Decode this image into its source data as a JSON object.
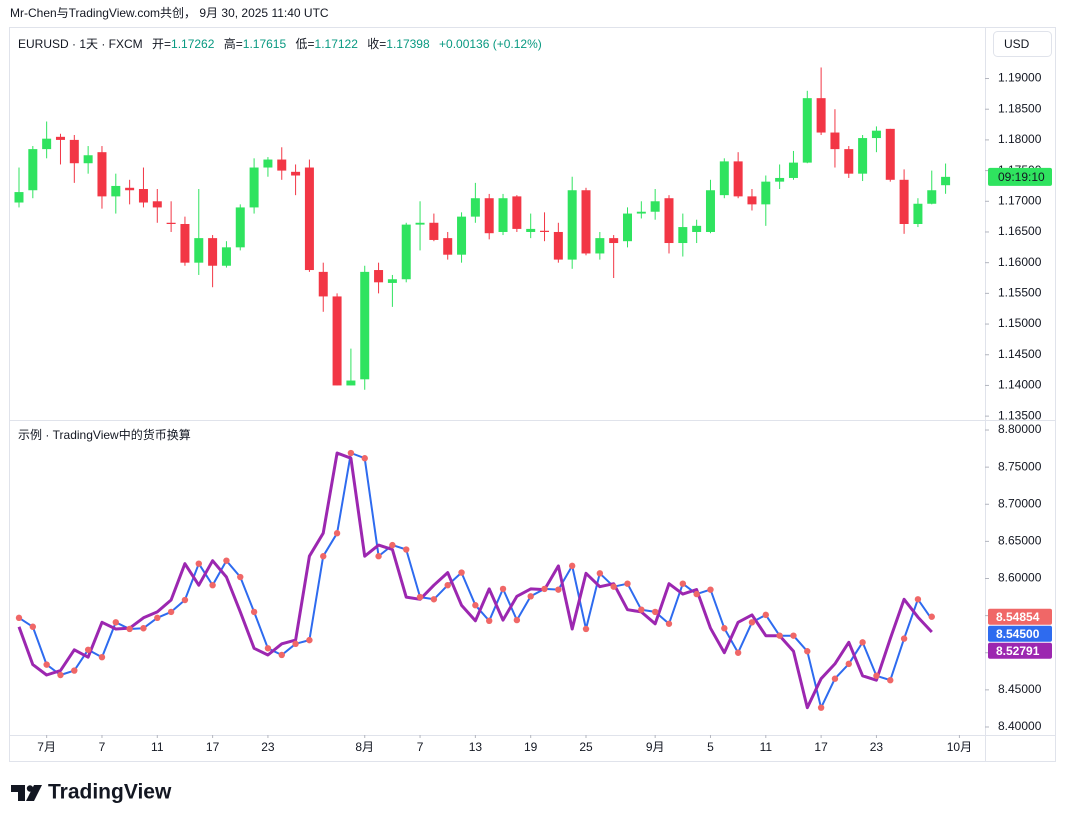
{
  "header": {
    "credit": "Mr-Chen与TradingView.com共创， 9月 30, 2025 11:40 UTC"
  },
  "currency_button": "USD",
  "logo": "TradingView",
  "chart_data": [
    {
      "type": "candlestick",
      "symbol": "EURUSD · 1天 · FXCM",
      "legend": {
        "open_label": "开=",
        "open": 1.17262,
        "high_label": "高=",
        "high": 1.17615,
        "low_label": "低=",
        "low": 1.17122,
        "close_label": "收=",
        "close": 1.17398,
        "change": "+0.00136 (+0.12%)"
      },
      "countdown": "09:19:10",
      "up_color": "#2fe35f",
      "down_color": "#f23645",
      "grid": false,
      "xlim": [
        -0.65,
        69.85
      ],
      "ylim": [
        1.13437,
        1.19823
      ],
      "yticks": [
        {
          "value": 1.135,
          "label": "1.13500"
        },
        {
          "value": 1.14,
          "label": "1.14000"
        },
        {
          "value": 1.145,
          "label": "1.14500"
        },
        {
          "value": 1.15,
          "label": "1.15000"
        },
        {
          "value": 1.155,
          "label": "1.15500"
        },
        {
          "value": 1.16,
          "label": "1.16000"
        },
        {
          "value": 1.165,
          "label": "1.16500"
        },
        {
          "value": 1.17,
          "label": "1.17000"
        },
        {
          "value": 1.175,
          "label": "1.17500"
        },
        {
          "value": 1.18,
          "label": "1.18000"
        },
        {
          "value": 1.185,
          "label": "1.18500"
        },
        {
          "value": 1.19,
          "label": "1.19000"
        }
      ],
      "open": [
        1.1698,
        1.1718,
        1.1785,
        1.1805,
        1.18,
        1.1762,
        1.178,
        1.1708,
        1.1722,
        1.172,
        1.17,
        1.1665,
        1.1663,
        1.16,
        1.164,
        1.1595,
        1.1625,
        1.169,
        1.1755,
        1.1768,
        1.1748,
        1.1755,
        1.1585,
        1.1545,
        1.14,
        1.141,
        1.1588,
        1.1567,
        1.1573,
        1.1662,
        1.1665,
        1.164,
        1.1613,
        1.1675,
        1.1705,
        1.165,
        1.1708,
        1.165,
        1.1652,
        1.165,
        1.1605,
        1.1718,
        1.1615,
        1.164,
        1.1635,
        1.168,
        1.1683,
        1.1705,
        1.1632,
        1.165,
        1.165,
        1.171,
        1.1765,
        1.1708,
        1.1695,
        1.1732,
        1.1738,
        1.1763,
        1.1868,
        1.1812,
        1.1785,
        1.1745,
        1.1803,
        1.1818,
        1.1735,
        1.1663,
        1.1696,
        1.17262
      ],
      "high": [
        1.1755,
        1.179,
        1.183,
        1.181,
        1.1808,
        1.179,
        1.179,
        1.1745,
        1.1735,
        1.1755,
        1.172,
        1.17,
        1.1675,
        1.172,
        1.1645,
        1.1635,
        1.1695,
        1.177,
        1.1772,
        1.1788,
        1.176,
        1.1768,
        1.16,
        1.155,
        1.146,
        1.1595,
        1.16,
        1.158,
        1.1665,
        1.17,
        1.168,
        1.165,
        1.1682,
        1.173,
        1.1712,
        1.1712,
        1.171,
        1.168,
        1.1682,
        1.1665,
        1.174,
        1.1722,
        1.165,
        1.1645,
        1.169,
        1.17,
        1.172,
        1.171,
        1.168,
        1.167,
        1.1735,
        1.177,
        1.178,
        1.172,
        1.1742,
        1.176,
        1.1782,
        1.188,
        1.1918,
        1.185,
        1.179,
        1.1808,
        1.1822,
        1.1818,
        1.1752,
        1.1705,
        1.175,
        1.17615
      ],
      "low": [
        1.169,
        1.1705,
        1.177,
        1.176,
        1.173,
        1.1745,
        1.1688,
        1.168,
        1.1695,
        1.169,
        1.1665,
        1.165,
        1.1595,
        1.158,
        1.156,
        1.1592,
        1.162,
        1.168,
        1.174,
        1.1735,
        1.171,
        1.1585,
        1.152,
        1.14,
        1.14,
        1.1393,
        1.155,
        1.1528,
        1.1568,
        1.162,
        1.1635,
        1.1605,
        1.16,
        1.1665,
        1.1638,
        1.1645,
        1.165,
        1.164,
        1.1635,
        1.16,
        1.159,
        1.1612,
        1.1605,
        1.1575,
        1.1625,
        1.1672,
        1.167,
        1.1615,
        1.161,
        1.1632,
        1.1648,
        1.1705,
        1.1705,
        1.1685,
        1.166,
        1.172,
        1.1735,
        1.1762,
        1.1808,
        1.1755,
        1.1738,
        1.1733,
        1.178,
        1.1732,
        1.1647,
        1.1658,
        1.1695,
        1.17122
      ],
      "close": [
        1.1715,
        1.1785,
        1.1802,
        1.18,
        1.1762,
        1.1775,
        1.1708,
        1.1725,
        1.1718,
        1.1698,
        1.169,
        1.1663,
        1.16,
        1.164,
        1.1595,
        1.1625,
        1.169,
        1.1755,
        1.1768,
        1.175,
        1.1742,
        1.1588,
        1.1545,
        1.14,
        1.1408,
        1.1585,
        1.1568,
        1.1573,
        1.1662,
        1.1665,
        1.1637,
        1.1613,
        1.1675,
        1.1705,
        1.1648,
        1.1705,
        1.1655,
        1.1655,
        1.165,
        1.1605,
        1.1718,
        1.1615,
        1.164,
        1.1632,
        1.168,
        1.1683,
        1.17,
        1.1632,
        1.1658,
        1.166,
        1.1718,
        1.1765,
        1.1708,
        1.1695,
        1.1732,
        1.1738,
        1.1763,
        1.1868,
        1.1812,
        1.1785,
        1.1745,
        1.1803,
        1.1815,
        1.1735,
        1.1663,
        1.1696,
        1.1718,
        1.17398
      ]
    },
    {
      "type": "line",
      "title": "示例 · TradingView中的货币换算",
      "grid": false,
      "xlim": [
        -0.65,
        69.85
      ],
      "ylim": [
        8.3892,
        8.8135
      ],
      "yticks": [
        {
          "value": 8.4,
          "label": "8.40000"
        },
        {
          "value": 8.45,
          "label": "8.45000"
        },
        {
          "value": 8.5,
          "label": "8.50000"
        },
        {
          "value": 8.55,
          "label": "8.55000"
        },
        {
          "value": 8.6,
          "label": "8.60000"
        },
        {
          "value": 8.65,
          "label": "8.65000"
        },
        {
          "value": 8.7,
          "label": "8.70000"
        },
        {
          "value": 8.75,
          "label": "8.75000"
        },
        {
          "value": 8.8,
          "label": "8.80000"
        }
      ],
      "xticks": [
        {
          "value": 2,
          "label": "7月"
        },
        {
          "value": 6,
          "label": "7"
        },
        {
          "value": 10,
          "label": "11"
        },
        {
          "value": 14,
          "label": "17"
        },
        {
          "value": 18,
          "label": "23"
        },
        {
          "value": 25,
          "label": "8月"
        },
        {
          "value": 29,
          "label": "7"
        },
        {
          "value": 33,
          "label": "13"
        },
        {
          "value": 37,
          "label": "19"
        },
        {
          "value": 41,
          "label": "25"
        },
        {
          "value": 46,
          "label": "9月"
        },
        {
          "value": 50,
          "label": "5"
        },
        {
          "value": 54,
          "label": "11"
        },
        {
          "value": 58,
          "label": "17"
        },
        {
          "value": 62,
          "label": "23"
        },
        {
          "value": 68,
          "label": "10月"
        }
      ],
      "series": [
        {
          "style": "line",
          "color": "#2e6bef",
          "width": 2,
          "last_value_label": "8.54500",
          "values": [
            8.547,
            8.535,
            8.484,
            8.47,
            8.476,
            8.504,
            8.494,
            8.541,
            8.532,
            8.533,
            8.547,
            8.555,
            8.571,
            8.62,
            8.591,
            8.624,
            8.602,
            8.555,
            8.506,
            8.497,
            8.512,
            8.517,
            8.63,
            8.661,
            8.769,
            8.762,
            8.63,
            8.645,
            8.639,
            8.575,
            8.572,
            8.591,
            8.608,
            8.564,
            8.543,
            8.586,
            8.544,
            8.576,
            8.586,
            8.585,
            8.617,
            8.532,
            8.607,
            8.589,
            8.593,
            8.558,
            8.555,
            8.539,
            8.593,
            8.579,
            8.585,
            8.533,
            8.5,
            8.541,
            8.551,
            8.523,
            8.523,
            8.502,
            8.426,
            8.465,
            8.485,
            8.514,
            8.469,
            8.463,
            8.519,
            8.572,
            8.545,
            null
          ]
        },
        {
          "style": "line",
          "color": "#9c27b0",
          "width": 3,
          "last_value_label": "8.52791",
          "values": [
            8.535,
            8.484,
            8.47,
            8.476,
            8.504,
            8.494,
            8.541,
            8.532,
            8.533,
            8.547,
            8.555,
            8.571,
            8.62,
            8.591,
            8.624,
            8.602,
            8.555,
            8.506,
            8.497,
            8.512,
            8.517,
            8.63,
            8.661,
            8.769,
            8.762,
            8.63,
            8.645,
            8.639,
            8.575,
            8.572,
            8.591,
            8.608,
            8.564,
            8.543,
            8.586,
            8.544,
            8.576,
            8.586,
            8.585,
            8.617,
            8.532,
            8.607,
            8.589,
            8.593,
            8.558,
            8.555,
            8.539,
            8.593,
            8.579,
            8.585,
            8.533,
            8.5,
            8.541,
            8.551,
            8.523,
            8.523,
            8.502,
            8.426,
            8.465,
            8.485,
            8.514,
            8.469,
            8.463,
            8.519,
            8.572,
            8.548,
            8.52791,
            null
          ]
        },
        {
          "style": "dots",
          "color": "#f06767",
          "last_value_label": "8.54854",
          "values": [
            8.547,
            8.535,
            8.484,
            8.47,
            8.476,
            8.504,
            8.494,
            8.541,
            8.532,
            8.533,
            8.547,
            8.555,
            8.571,
            8.62,
            8.591,
            8.624,
            8.602,
            8.555,
            8.506,
            8.497,
            8.512,
            8.517,
            8.63,
            8.661,
            8.769,
            8.762,
            8.63,
            8.645,
            8.639,
            8.575,
            8.572,
            8.591,
            8.608,
            8.564,
            8.543,
            8.586,
            8.544,
            8.576,
            8.586,
            8.585,
            8.617,
            8.532,
            8.607,
            8.589,
            8.593,
            8.558,
            8.555,
            8.539,
            8.593,
            8.579,
            8.585,
            8.533,
            8.5,
            8.541,
            8.551,
            8.523,
            8.523,
            8.502,
            8.426,
            8.465,
            8.485,
            8.514,
            8.469,
            8.463,
            8.519,
            8.572,
            8.54854,
            null
          ]
        }
      ]
    }
  ]
}
